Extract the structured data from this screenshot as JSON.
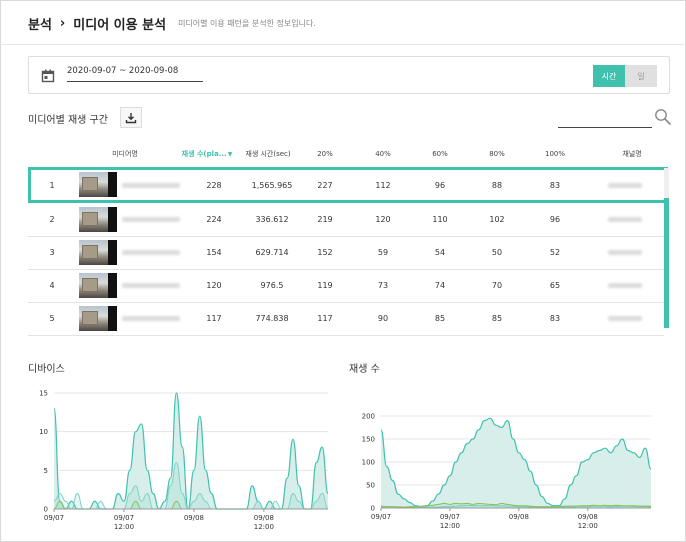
{
  "header": {
    "crumbs": [
      "분석",
      "미디어 이용 분석"
    ],
    "separator": "›",
    "description": "미디어별 이용 패턴을 분석한 정보입니다."
  },
  "filter": {
    "date_range": "2020-09-07 ~ 2020-09-08",
    "toggle": [
      "시간",
      "일"
    ],
    "selected_toggle": "시간"
  },
  "table_section": {
    "title": "미디어별 재생 구간"
  },
  "colors": {
    "accent": "#3fc1ae",
    "fill": "#d8eeea",
    "secondary": "#8bc34a"
  },
  "table": {
    "columns": [
      "",
      "미디어명",
      "재생 수(pla...",
      "재생 시간(sec)",
      "20%",
      "40%",
      "60%",
      "80%",
      "100%",
      "채널명"
    ],
    "sort_icon": "▼",
    "rows": [
      {
        "rank": "1",
        "plays": "228",
        "time": "1,565.965",
        "p20": "227",
        "p40": "112",
        "p60": "96",
        "p80": "88",
        "p100": "83"
      },
      {
        "rank": "2",
        "plays": "224",
        "time": "336.612",
        "p20": "219",
        "p40": "120",
        "p60": "110",
        "p80": "102",
        "p100": "96"
      },
      {
        "rank": "3",
        "plays": "154",
        "time": "629.714",
        "p20": "152",
        "p40": "59",
        "p60": "54",
        "p80": "50",
        "p100": "52"
      },
      {
        "rank": "4",
        "plays": "120",
        "time": "976.5",
        "p20": "119",
        "p40": "73",
        "p60": "74",
        "p80": "70",
        "p100": "65"
      },
      {
        "rank": "5",
        "plays": "117",
        "time": "774.838",
        "p20": "117",
        "p40": "90",
        "p60": "85",
        "p80": "85",
        "p100": "83"
      }
    ]
  },
  "chart_data": [
    {
      "type": "area",
      "title": "디바이스",
      "ylim": [
        0,
        15
      ],
      "yticks": [
        "0",
        "5",
        "10",
        "15"
      ],
      "xticks": [
        {
          "label": "09/07",
          "sub": "",
          "x": 0
        },
        {
          "label": "09/07",
          "sub": "12:00",
          "x": 12
        },
        {
          "label": "09/08",
          "sub": "",
          "x": 24
        },
        {
          "label": "09/08",
          "sub": "12:00",
          "x": 36
        }
      ],
      "xmax": 47,
      "grid": true,
      "series": [
        {
          "values": [
            13,
            1,
            0,
            1,
            0,
            0,
            0,
            1,
            0,
            0,
            0,
            2,
            1,
            5,
            10,
            11,
            5,
            2,
            0,
            1,
            4,
            15,
            8,
            0,
            5,
            12,
            5,
            2,
            0,
            0,
            0,
            0,
            0,
            0,
            3,
            1,
            0,
            1,
            0,
            0,
            4,
            9,
            3,
            0,
            0,
            6,
            8,
            2
          ]
        },
        {
          "values": [
            1,
            2,
            1,
            0,
            2,
            0,
            0,
            0,
            1,
            0,
            0,
            0,
            0,
            2,
            3,
            1,
            2,
            0,
            0,
            0,
            3,
            6,
            2,
            0,
            1,
            2,
            1,
            0,
            0,
            0,
            0,
            0,
            0,
            0,
            0,
            1,
            0,
            0,
            1,
            0,
            0,
            2,
            1,
            0,
            0,
            1,
            2,
            0
          ]
        },
        {
          "values": [
            0,
            1,
            0,
            0,
            0,
            0,
            0,
            0,
            0,
            0,
            0,
            0,
            0,
            0,
            1,
            0,
            0,
            0,
            0,
            0,
            0,
            1,
            0,
            0,
            0,
            0,
            0,
            0,
            0,
            0,
            0,
            0,
            0,
            0,
            0,
            0,
            0,
            0,
            0,
            0,
            0,
            0,
            0,
            0,
            0,
            0,
            0,
            0
          ]
        }
      ]
    },
    {
      "type": "area",
      "title": "재생 수",
      "ylim": [
        0,
        200
      ],
      "yticks": [
        "0",
        "50",
        "100",
        "150",
        "200"
      ],
      "xticks": [
        {
          "label": "09/07",
          "sub": "",
          "x": 0
        },
        {
          "label": "09/07",
          "sub": "12:00",
          "x": 12
        },
        {
          "label": "09/08",
          "sub": "",
          "x": 24
        },
        {
          "label": "09/08",
          "sub": "12:00",
          "x": 36
        }
      ],
      "xmax": 47,
      "grid": true,
      "series": [
        {
          "values": [
            170,
            90,
            60,
            30,
            20,
            12,
            5,
            3,
            5,
            15,
            30,
            50,
            70,
            100,
            120,
            140,
            150,
            170,
            190,
            195,
            180,
            175,
            190,
            150,
            120,
            105,
            80,
            50,
            25,
            10,
            5,
            5,
            20,
            50,
            70,
            100,
            105,
            120,
            125,
            130,
            120,
            135,
            150,
            125,
            120,
            110,
            130,
            85
          ]
        },
        {
          "values": [
            2,
            2,
            3,
            3,
            2,
            2,
            2,
            2,
            2,
            2,
            2,
            3,
            3,
            4,
            5,
            6,
            5,
            6,
            5,
            6,
            5,
            5,
            4,
            4,
            3,
            3,
            2,
            2,
            2,
            2,
            2,
            2,
            2,
            2,
            3,
            3,
            3,
            4,
            4,
            4,
            3,
            3,
            4,
            4,
            3,
            3,
            3,
            2
          ]
        },
        {
          "values": [
            4,
            3,
            3,
            2,
            2,
            3,
            3,
            4,
            5,
            6,
            8,
            10,
            8,
            10,
            9,
            10,
            8,
            10,
            9,
            8,
            7,
            10,
            8,
            6,
            5,
            5,
            4,
            3,
            3,
            3,
            3,
            3,
            4,
            4,
            4,
            5,
            5,
            6,
            5,
            6,
            5,
            6,
            5,
            5,
            5,
            4,
            4,
            4
          ]
        }
      ]
    }
  ]
}
